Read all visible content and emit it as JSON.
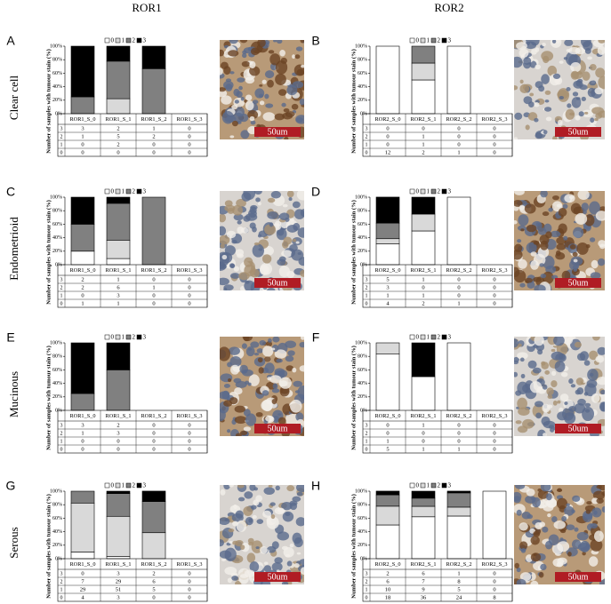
{
  "columns": [
    "ROR1",
    "ROR2"
  ],
  "rows": [
    "Clear cell",
    "Endometrioid",
    "Mucinous",
    "Serous"
  ],
  "scale_label": "50um",
  "chart_data": [
    {
      "type": "bar",
      "panel": "A",
      "ylabel": "Number of samples with tumour stain (%)",
      "categories": [
        "ROR1_S_0",
        "ROR1_S_1",
        "ROR1_S_2",
        "ROR1_S_3"
      ],
      "ylim": [
        0,
        100
      ],
      "yticks": [
        {
          "value": 0,
          "label": "0%"
        },
        {
          "value": 20,
          "label": "20%"
        },
        {
          "value": 40,
          "label": "40%"
        },
        {
          "value": 60,
          "label": "60%"
        },
        {
          "value": 80,
          "label": "80%"
        },
        {
          "value": 100,
          "label": "100%"
        }
      ],
      "series": [
        {
          "name": "0",
          "color": "#ffffff",
          "values": [
            0,
            0,
            0,
            0
          ],
          "counts": [
            0,
            0,
            0,
            0
          ]
        },
        {
          "name": "1",
          "color": "#d9d9d9",
          "values": [
            0,
            22.2,
            0,
            0
          ],
          "counts": [
            0,
            2,
            0,
            0
          ]
        },
        {
          "name": "2",
          "color": "#808080",
          "values": [
            25,
            55.6,
            66.7,
            0
          ],
          "counts": [
            1,
            5,
            2,
            0
          ]
        },
        {
          "name": "3",
          "color": "#000000",
          "values": [
            75,
            22.2,
            33.3,
            0
          ],
          "counts": [
            3,
            2,
            1,
            0
          ]
        }
      ]
    },
    {
      "type": "bar",
      "panel": "B",
      "ylabel": "Number of samples with tumour stain (%)",
      "categories": [
        "ROR2_S_0",
        "ROR2_S_1",
        "ROR2_S_2",
        "ROR2_S_3"
      ],
      "ylim": [
        0,
        100
      ],
      "yticks": [
        {
          "value": 0,
          "label": "0%"
        },
        {
          "value": 20,
          "label": "20%"
        },
        {
          "value": 40,
          "label": "40%"
        },
        {
          "value": 60,
          "label": "60%"
        },
        {
          "value": 80,
          "label": "80%"
        },
        {
          "value": 100,
          "label": "100%"
        }
      ],
      "series": [
        {
          "name": "0",
          "color": "#ffffff",
          "values": [
            100,
            50,
            100,
            0
          ],
          "counts": [
            12,
            2,
            1,
            0
          ]
        },
        {
          "name": "1",
          "color": "#d9d9d9",
          "values": [
            0,
            25,
            0,
            0
          ],
          "counts": [
            0,
            1,
            0,
            0
          ]
        },
        {
          "name": "2",
          "color": "#808080",
          "values": [
            0,
            25,
            0,
            0
          ],
          "counts": [
            0,
            1,
            0,
            0
          ]
        },
        {
          "name": "3",
          "color": "#000000",
          "values": [
            0,
            0,
            0,
            0
          ],
          "counts": [
            0,
            0,
            0,
            0
          ]
        }
      ]
    },
    {
      "type": "bar",
      "panel": "C",
      "ylabel": "Number of samples with tumour stain (%)",
      "categories": [
        "ROR1_S_0",
        "ROR1_S_1",
        "ROR1_S_2",
        "ROR1_S_3"
      ],
      "ylim": [
        0,
        100
      ],
      "yticks": [
        {
          "value": 0,
          "label": "0%"
        },
        {
          "value": 20,
          "label": "20%"
        },
        {
          "value": 40,
          "label": "40%"
        },
        {
          "value": 60,
          "label": "60%"
        },
        {
          "value": 80,
          "label": "80%"
        },
        {
          "value": 100,
          "label": "100%"
        }
      ],
      "series": [
        {
          "name": "0",
          "color": "#ffffff",
          "values": [
            20,
            9.1,
            0,
            0
          ],
          "counts": [
            1,
            1,
            0,
            0
          ]
        },
        {
          "name": "1",
          "color": "#d9d9d9",
          "values": [
            0,
            27.3,
            0,
            0
          ],
          "counts": [
            0,
            3,
            0,
            0
          ]
        },
        {
          "name": "2",
          "color": "#808080",
          "values": [
            40,
            54.5,
            100,
            0
          ],
          "counts": [
            2,
            6,
            1,
            0
          ]
        },
        {
          "name": "3",
          "color": "#000000",
          "values": [
            40,
            9.1,
            0,
            0
          ],
          "counts": [
            2,
            1,
            0,
            0
          ]
        }
      ]
    },
    {
      "type": "bar",
      "panel": "D",
      "ylabel": "Number of samples with tumour stain (%)",
      "categories": [
        "ROR2_S_0",
        "ROR2_S_1",
        "ROR2_S_2",
        "ROR2_S_3"
      ],
      "ylim": [
        0,
        100
      ],
      "yticks": [
        {
          "value": 0,
          "label": "0%"
        },
        {
          "value": 20,
          "label": "20%"
        },
        {
          "value": 40,
          "label": "40%"
        },
        {
          "value": 60,
          "label": "60%"
        },
        {
          "value": 80,
          "label": "80%"
        },
        {
          "value": 100,
          "label": "100%"
        }
      ],
      "series": [
        {
          "name": "0",
          "color": "#ffffff",
          "values": [
            30.8,
            50,
            100,
            0
          ],
          "counts": [
            4,
            2,
            1,
            0
          ]
        },
        {
          "name": "1",
          "color": "#d9d9d9",
          "values": [
            7.7,
            25,
            0,
            0
          ],
          "counts": [
            1,
            1,
            0,
            0
          ]
        },
        {
          "name": "2",
          "color": "#808080",
          "values": [
            23.1,
            0,
            0,
            0
          ],
          "counts": [
            3,
            0,
            0,
            0
          ]
        },
        {
          "name": "3",
          "color": "#000000",
          "values": [
            38.5,
            25,
            0,
            0
          ],
          "counts": [
            5,
            1,
            0,
            0
          ]
        }
      ]
    },
    {
      "type": "bar",
      "panel": "E",
      "ylabel": "Number of samples with tumour stain (%)",
      "categories": [
        "ROR1_S_0",
        "ROR1_S_1",
        "ROR1_S_2",
        "ROR1_S_3"
      ],
      "ylim": [
        0,
        100
      ],
      "yticks": [
        {
          "value": 0,
          "label": "0%"
        },
        {
          "value": 20,
          "label": "20%"
        },
        {
          "value": 40,
          "label": "40%"
        },
        {
          "value": 60,
          "label": "60%"
        },
        {
          "value": 80,
          "label": "80%"
        },
        {
          "value": 100,
          "label": "100%"
        }
      ],
      "series": [
        {
          "name": "0",
          "color": "#ffffff",
          "values": [
            0,
            0,
            0,
            0
          ],
          "counts": [
            0,
            0,
            0,
            0
          ]
        },
        {
          "name": "1",
          "color": "#d9d9d9",
          "values": [
            0,
            0,
            0,
            0
          ],
          "counts": [
            0,
            0,
            0,
            0
          ]
        },
        {
          "name": "2",
          "color": "#808080",
          "values": [
            25,
            60,
            0,
            0
          ],
          "counts": [
            1,
            3,
            0,
            0
          ]
        },
        {
          "name": "3",
          "color": "#000000",
          "values": [
            75,
            40,
            0,
            0
          ],
          "counts": [
            3,
            2,
            0,
            0
          ]
        }
      ]
    },
    {
      "type": "bar",
      "panel": "F",
      "ylabel": "Number of samples with tumour stain (%)",
      "categories": [
        "ROR2_S_0",
        "ROR2_S_1",
        "ROR2_S_2",
        "ROR2_S_3"
      ],
      "ylim": [
        0,
        100
      ],
      "yticks": [
        {
          "value": 0,
          "label": "0%"
        },
        {
          "value": 20,
          "label": "20%"
        },
        {
          "value": 40,
          "label": "40%"
        },
        {
          "value": 60,
          "label": "60%"
        },
        {
          "value": 80,
          "label": "80%"
        },
        {
          "value": 100,
          "label": "100%"
        }
      ],
      "series": [
        {
          "name": "0",
          "color": "#ffffff",
          "values": [
            83.3,
            50,
            100,
            0
          ],
          "counts": [
            5,
            1,
            1,
            0
          ]
        },
        {
          "name": "1",
          "color": "#d9d9d9",
          "values": [
            16.7,
            0,
            0,
            0
          ],
          "counts": [
            1,
            0,
            0,
            0
          ]
        },
        {
          "name": "2",
          "color": "#808080",
          "values": [
            0,
            0,
            0,
            0
          ],
          "counts": [
            0,
            0,
            0,
            0
          ]
        },
        {
          "name": "3",
          "color": "#000000",
          "values": [
            0,
            50,
            0,
            0
          ],
          "counts": [
            0,
            1,
            0,
            0
          ]
        }
      ]
    },
    {
      "type": "bar",
      "panel": "G",
      "ylabel": "Number of samples with tumour stain (%)",
      "categories": [
        "ROR1_S_0",
        "ROR1_S_1",
        "ROR1_S_2",
        "ROR1_S_3"
      ],
      "ylim": [
        0,
        100
      ],
      "yticks": [
        {
          "value": 0,
          "label": "0%"
        },
        {
          "value": 20,
          "label": "20%"
        },
        {
          "value": 40,
          "label": "40%"
        },
        {
          "value": 60,
          "label": "60%"
        },
        {
          "value": 80,
          "label": "80%"
        },
        {
          "value": 100,
          "label": "100%"
        }
      ],
      "series": [
        {
          "name": "0",
          "color": "#ffffff",
          "values": [
            10,
            3.5,
            0,
            0
          ],
          "counts": [
            4,
            3,
            0,
            0
          ]
        },
        {
          "name": "1",
          "color": "#d9d9d9",
          "values": [
            72.5,
            59.3,
            38.5,
            0
          ],
          "counts": [
            29,
            51,
            5,
            0
          ]
        },
        {
          "name": "2",
          "color": "#808080",
          "values": [
            17.5,
            33.7,
            46.2,
            0
          ],
          "counts": [
            7,
            29,
            6,
            0
          ]
        },
        {
          "name": "3",
          "color": "#000000",
          "values": [
            0,
            3.5,
            15.4,
            0
          ],
          "counts": [
            0,
            3,
            2,
            0
          ]
        }
      ]
    },
    {
      "type": "bar",
      "panel": "H",
      "ylabel": "Number of samples with tumour stain (%)",
      "categories": [
        "ROR2_S_0",
        "ROR2_S_1",
        "ROR2_S_2",
        "ROR2_S_3"
      ],
      "ylim": [
        0,
        100
      ],
      "yticks": [
        {
          "value": 0,
          "label": "0%"
        },
        {
          "value": 20,
          "label": "20%"
        },
        {
          "value": 40,
          "label": "40%"
        },
        {
          "value": 60,
          "label": "60%"
        },
        {
          "value": 80,
          "label": "80%"
        },
        {
          "value": 100,
          "label": "100%"
        }
      ],
      "series": [
        {
          "name": "0",
          "color": "#ffffff",
          "values": [
            50,
            62.1,
            63.2,
            100
          ],
          "counts": [
            18,
            36,
            24,
            8
          ]
        },
        {
          "name": "1",
          "color": "#d9d9d9",
          "values": [
            27.8,
            15.5,
            13.2,
            0
          ],
          "counts": [
            10,
            9,
            5,
            0
          ]
        },
        {
          "name": "2",
          "color": "#808080",
          "values": [
            16.7,
            12.1,
            21.1,
            0
          ],
          "counts": [
            6,
            7,
            8,
            0
          ]
        },
        {
          "name": "3",
          "color": "#000000",
          "values": [
            5.6,
            10.3,
            2.6,
            0
          ],
          "counts": [
            2,
            6,
            1,
            0
          ]
        }
      ]
    }
  ]
}
